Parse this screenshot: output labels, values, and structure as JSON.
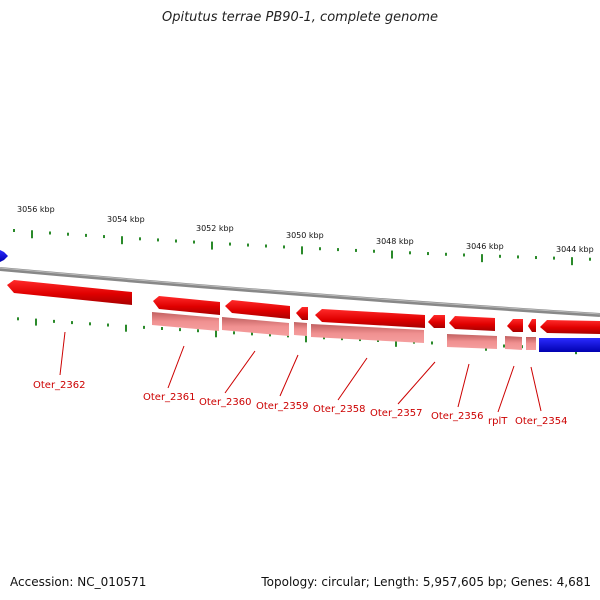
{
  "title": "Opitutus terrae PB90-1, complete genome",
  "footer": {
    "accession": "Accession: NC_010571",
    "topology": "Topology: circular; Length: 5,957,605 bp; Genes: 4,681"
  },
  "kbp_labels": [
    "3056 kbp",
    "3054 kbp",
    "3052 kbp",
    "3050 kbp",
    "3048 kbp",
    "3046 kbp",
    "3044 kbp"
  ],
  "gene_labels": [
    "Oter_2362",
    "Oter_2361",
    "Oter_2360",
    "Oter_2359",
    "Oter_2358",
    "Oter_2357",
    "Oter_2356",
    "rplT",
    "Oter_2354"
  ],
  "colors": {
    "gene_reverse": "#ee0000",
    "gene_reverse_light": "#f08080",
    "gene_forward": "#1a1aee",
    "backbone": "#888888",
    "tick": "#2a8a2a",
    "label": "#cc0000"
  }
}
